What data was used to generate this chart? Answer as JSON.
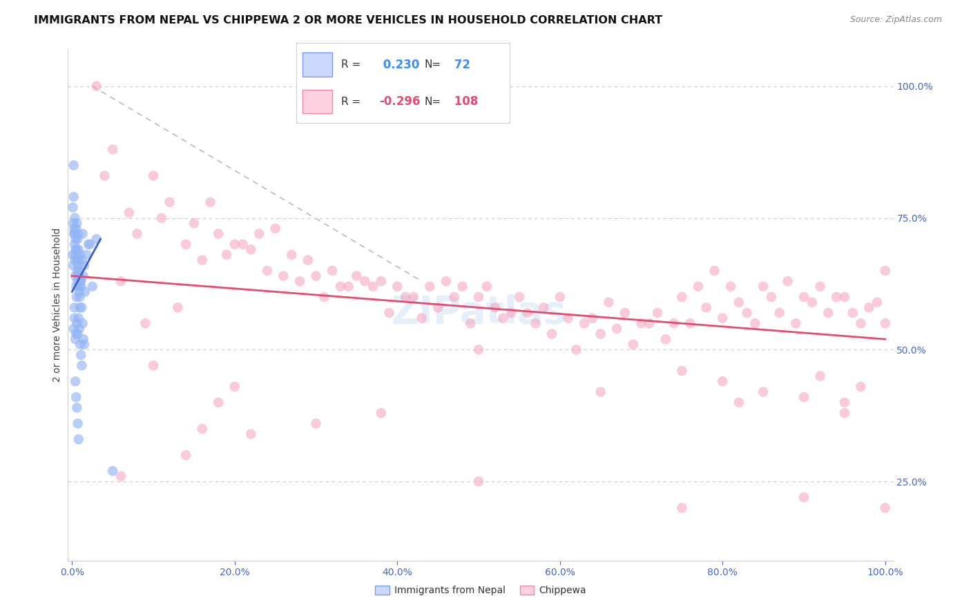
{
  "title": "IMMIGRANTS FROM NEPAL VS CHIPPEWA 2 OR MORE VEHICLES IN HOUSEHOLD CORRELATION CHART",
  "source": "Source: ZipAtlas.com",
  "ylabel": "2 or more Vehicles in Household",
  "nepal_R": 0.23,
  "nepal_N": 72,
  "chippewa_R": -0.296,
  "chippewa_N": 108,
  "nepal_color": "#92b4f5",
  "chippewa_color": "#f5a0bc",
  "trend_nepal_color": "#3a5fc8",
  "trend_chippewa_color": "#e8496e",
  "dashed_line_color": "#bbbbbb",
  "background_color": "#ffffff",
  "grid_color": "#cccccc",
  "axis_label_color": "#4466cc",
  "title_color": "#111111",
  "source_color": "#888888",
  "legend_r_nepal_color": "#3a8cff",
  "legend_r_chippewa_color": "#e8496e",
  "legend_n_nepal_color": "#3a8cff",
  "legend_n_chippewa_color": "#e8496e",
  "watermark_color": "#aaccee",
  "xmin": 0,
  "xmax": 100,
  "ymin": 0,
  "ymax": 100,
  "nepal_scatter_x": [
    0.1,
    0.15,
    0.2,
    0.25,
    0.3,
    0.35,
    0.4,
    0.45,
    0.5,
    0.55,
    0.6,
    0.65,
    0.7,
    0.75,
    0.8,
    0.85,
    0.9,
    0.95,
    1.0,
    1.1,
    1.2,
    1.3,
    1.4,
    1.5,
    1.6,
    1.8,
    2.0,
    2.5,
    3.0,
    0.1,
    0.15,
    0.2,
    0.25,
    0.3,
    0.35,
    0.4,
    0.45,
    0.5,
    0.55,
    0.6,
    0.65,
    0.7,
    0.75,
    0.8,
    0.85,
    0.9,
    0.95,
    1.0,
    1.1,
    1.2,
    1.3,
    1.4,
    1.5,
    0.2,
    0.3,
    0.4,
    0.5,
    0.6,
    0.7,
    0.8,
    0.9,
    1.0,
    1.1,
    1.2,
    0.3,
    0.4,
    0.5,
    0.6,
    0.7,
    0.8,
    2.2,
    5.0
  ],
  "nepal_scatter_y": [
    68,
    66,
    85,
    72,
    70,
    67,
    64,
    69,
    62,
    60,
    67,
    63,
    71,
    66,
    69,
    65,
    62,
    60,
    68,
    63,
    67,
    72,
    64,
    66,
    61,
    68,
    70,
    62,
    71,
    77,
    74,
    79,
    73,
    72,
    75,
    68,
    71,
    73,
    69,
    74,
    65,
    68,
    72,
    67,
    64,
    61,
    58,
    63,
    62,
    58,
    55,
    52,
    51,
    54,
    56,
    52,
    53,
    55,
    53,
    56,
    54,
    51,
    49,
    47,
    58,
    44,
    41,
    39,
    36,
    33,
    70,
    27
  ],
  "chippewa_scatter_x": [
    3.0,
    4.0,
    5.0,
    7.0,
    8.0,
    10.0,
    11.0,
    12.0,
    14.0,
    15.0,
    16.0,
    17.0,
    18.0,
    19.0,
    20.0,
    22.0,
    23.0,
    24.0,
    25.0,
    27.0,
    28.0,
    29.0,
    30.0,
    31.0,
    32.0,
    33.0,
    35.0,
    36.0,
    37.0,
    38.0,
    39.0,
    40.0,
    41.0,
    42.0,
    43.0,
    44.0,
    45.0,
    46.0,
    47.0,
    48.0,
    49.0,
    50.0,
    51.0,
    52.0,
    53.0,
    54.0,
    55.0,
    56.0,
    57.0,
    58.0,
    59.0,
    60.0,
    61.0,
    62.0,
    63.0,
    64.0,
    65.0,
    66.0,
    67.0,
    68.0,
    69.0,
    70.0,
    71.0,
    72.0,
    73.0,
    74.0,
    75.0,
    76.0,
    77.0,
    78.0,
    79.0,
    80.0,
    81.0,
    82.0,
    83.0,
    84.0,
    85.0,
    86.0,
    87.0,
    88.0,
    89.0,
    90.0,
    91.0,
    92.0,
    93.0,
    94.0,
    95.0,
    96.0,
    97.0,
    98.0,
    99.0,
    100.0,
    6.0,
    9.0,
    13.0,
    21.0,
    26.0,
    34.0,
    50.0,
    75.0,
    80.0,
    85.0,
    90.0,
    95.0,
    100.0,
    10.0,
    20.0,
    30.0
  ],
  "chippewa_scatter_y": [
    100,
    83,
    88,
    76,
    72,
    83,
    75,
    78,
    70,
    74,
    67,
    78,
    72,
    68,
    70,
    69,
    72,
    65,
    73,
    68,
    63,
    67,
    64,
    60,
    65,
    62,
    64,
    63,
    62,
    63,
    57,
    62,
    60,
    60,
    56,
    62,
    58,
    63,
    60,
    62,
    55,
    60,
    62,
    58,
    56,
    57,
    60,
    57,
    55,
    58,
    53,
    60,
    56,
    50,
    55,
    56,
    53,
    59,
    54,
    57,
    51,
    55,
    55,
    57,
    52,
    55,
    60,
    55,
    62,
    58,
    65,
    56,
    62,
    59,
    57,
    55,
    62,
    60,
    57,
    63,
    55,
    60,
    59,
    62,
    57,
    60,
    60,
    57,
    55,
    58,
    59,
    65,
    63,
    55,
    58,
    70,
    64,
    62,
    50,
    46,
    44,
    42,
    41,
    38,
    20,
    47,
    43,
    36
  ],
  "chippewa_scatter_extra_x": [
    6.0,
    14.0,
    16.0,
    18.0,
    22.0,
    38.0,
    50.0,
    65.0,
    75.0,
    82.0,
    90.0,
    92.0,
    95.0,
    97.0,
    100.0
  ],
  "chippewa_scatter_extra_y": [
    26,
    30,
    35,
    40,
    34,
    38,
    25,
    42,
    20,
    40,
    22,
    45,
    40,
    43,
    55
  ]
}
